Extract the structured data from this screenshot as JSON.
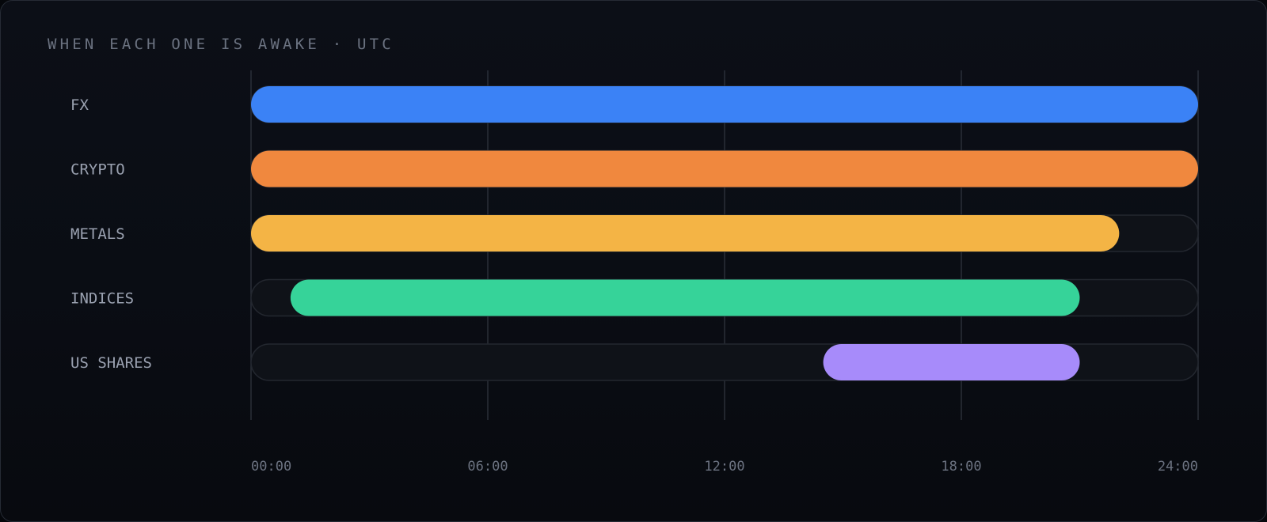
{
  "chart_data": {
    "type": "bar",
    "subtype": "range-timeline",
    "title": "WHEN EACH ONE IS AWAKE · UTC",
    "x_unit": "hours UTC",
    "xlim": [
      0,
      24
    ],
    "ticks": [
      {
        "value": 0,
        "label": "00:00"
      },
      {
        "value": 6,
        "label": "06:00"
      },
      {
        "value": 12,
        "label": "12:00"
      },
      {
        "value": 18,
        "label": "18:00"
      },
      {
        "value": 24,
        "label": "24:00"
      }
    ],
    "grid": true,
    "series": [
      {
        "name": "FX",
        "start": 0,
        "end": 24,
        "color": "#3b82f6"
      },
      {
        "name": "CRYPTO",
        "start": 0,
        "end": 24,
        "color": "#f0883e"
      },
      {
        "name": "METALS",
        "start": 0,
        "end": 22,
        "color": "#f4b445"
      },
      {
        "name": "INDICES",
        "start": 1,
        "end": 21,
        "color": "#36d399"
      },
      {
        "name": "US SHARES",
        "start": 14.5,
        "end": 21,
        "color": "#a78bfa"
      }
    ],
    "track_color": "#0f1218",
    "track_border": "#23272f",
    "grid_color": "#2a2f38"
  }
}
